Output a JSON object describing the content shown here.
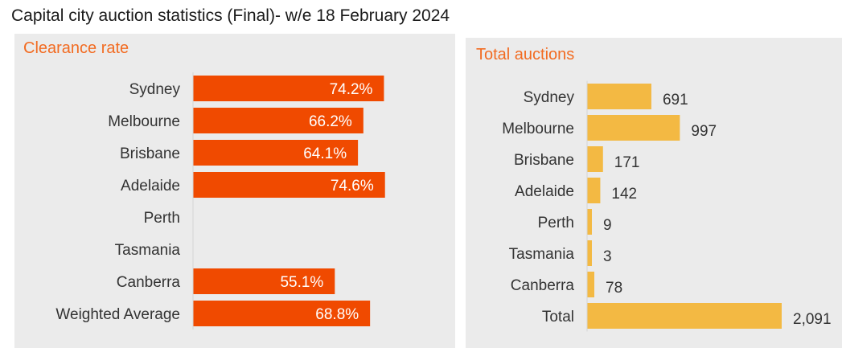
{
  "title": "Capital city auction statistics (Final)- w/e 18 February 2024",
  "colors": {
    "clearance_bar": "#f04a00",
    "auction_bar": "#f3b943",
    "panel_bg": "#ebebeb",
    "panel_title": "#f26b21"
  },
  "chart_data": [
    {
      "type": "bar",
      "orientation": "horizontal",
      "title": "Clearance rate",
      "categories": [
        "Sydney",
        "Melbourne",
        "Brisbane",
        "Adelaide",
        "Perth",
        "Tasmania",
        "Canberra",
        "Weighted Average"
      ],
      "values": [
        74.2,
        66.2,
        64.1,
        74.6,
        null,
        null,
        55.1,
        68.8
      ],
      "labels": [
        "74.2%",
        "66.2%",
        "64.1%",
        "74.6%",
        "",
        "",
        "55.1%",
        "68.8%"
      ],
      "xlim": [
        0,
        100
      ],
      "grid": false,
      "legend": "none"
    },
    {
      "type": "bar",
      "orientation": "horizontal",
      "title": "Total auctions",
      "categories": [
        "Sydney",
        "Melbourne",
        "Brisbane",
        "Adelaide",
        "Perth",
        "Tasmania",
        "Canberra",
        "Total"
      ],
      "values": [
        691,
        997,
        171,
        142,
        9,
        3,
        78,
        2091
      ],
      "labels": [
        "691",
        "997",
        "171",
        "142",
        "9",
        "3",
        "78",
        "2,091"
      ],
      "xlim": [
        0,
        2091
      ],
      "grid": false,
      "legend": "none"
    }
  ]
}
